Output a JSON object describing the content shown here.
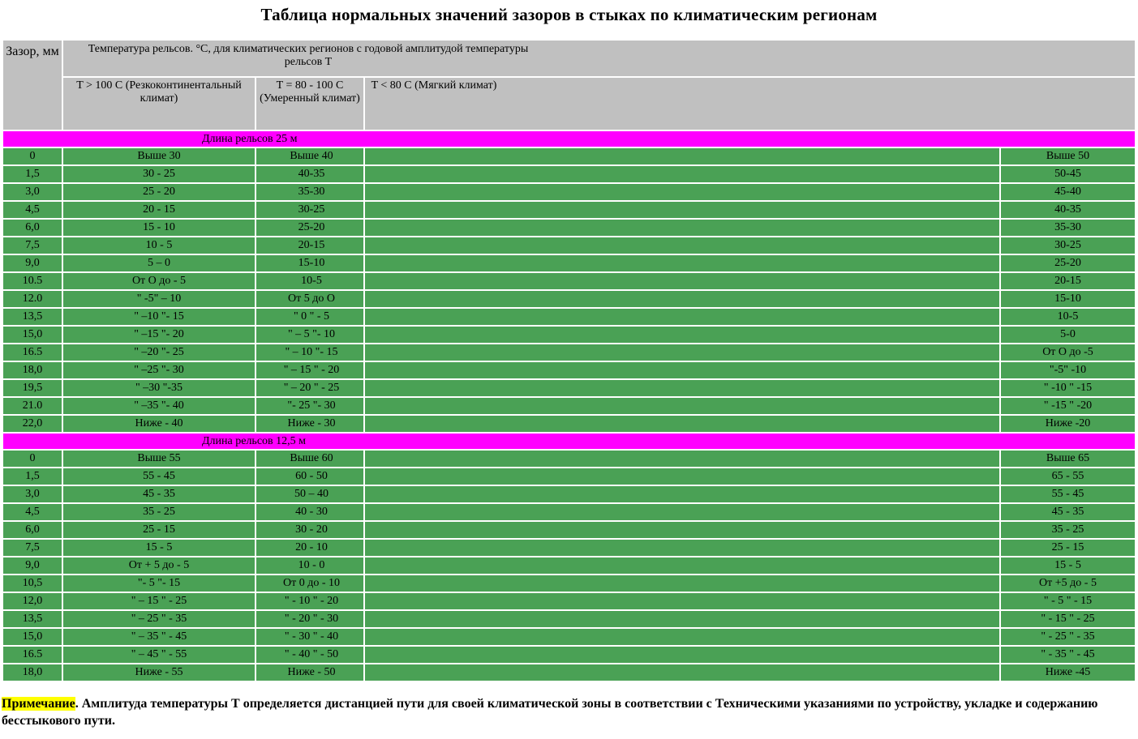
{
  "title": "Таблица нормальных значений зазоров в стыках по климатическим регионам",
  "header": {
    "gap_label": "Зазор, мм",
    "temp_label": "Температура рельсов. °С, для климатических регионов с годовой амплитудой температуры рельсов Т",
    "col1": "T > 100 C (Резкоконтинентальный климат)",
    "col2": "T = 80 - 100 C (Умеренный климат)",
    "col3": "T < 80 C (Мягкий климат)"
  },
  "sections": [
    {
      "title": "Длина рельсов 25 м",
      "rows": [
        [
          "0",
          "Выше 30",
          "Выше 40",
          "Выше 50"
        ],
        [
          "1,5",
          "30 - 25",
          "40-35",
          "50-45"
        ],
        [
          "3,0",
          "25 - 20",
          "35-30",
          "45-40"
        ],
        [
          "4,5",
          "20 - 15",
          "30-25",
          "40-35"
        ],
        [
          "6,0",
          "15 - 10",
          "25-20",
          "35-30"
        ],
        [
          "7,5",
          "10 - 5",
          "20-15",
          "30-25"
        ],
        [
          "9,0",
          "5 – 0",
          "15-10",
          "25-20"
        ],
        [
          "10.5",
          "От О до - 5",
          "10-5",
          "20-15"
        ],
        [
          "12.0",
          "\" -5\" – 10",
          "От 5 до О",
          "15-10"
        ],
        [
          "13,5",
          "\" –10 \"- 15",
          "\" 0 \" - 5",
          "10-5"
        ],
        [
          "15,0",
          "\" –15 \"- 20",
          "\" – 5 \"- 10",
          "5-0"
        ],
        [
          "16.5",
          "\" –20 \"- 25",
          "\" – 10 \"- 15",
          "От О до -5"
        ],
        [
          "18,0",
          "\" –25 \"- 30",
          "\" – 15 \" - 20",
          "\"-5\" -10"
        ],
        [
          "19,5",
          "\" –30 \"-35",
          "\" – 20 \" - 25",
          "\" -10 \" -15"
        ],
        [
          "21.0",
          "\" –35 \"- 40",
          "\"- 25 \"- 30",
          "\" -15 \" -20"
        ],
        [
          "22,0",
          "Ниже - 40",
          "Ниже - 30",
          "Ниже -20"
        ]
      ]
    },
    {
      "title": "Длина рельсов 12,5 м",
      "rows": [
        [
          "0",
          "Выше 55",
          "Выше 60",
          "Выше 65"
        ],
        [
          "1,5",
          "55 - 45",
          "60 - 50",
          "65 - 55"
        ],
        [
          "3,0",
          "45 - 35",
          "50 – 40",
          "55 - 45"
        ],
        [
          "4,5",
          "35 - 25",
          "40 - 30",
          "45 - 35"
        ],
        [
          "6,0",
          "25 - 15",
          "30 - 20",
          "35 - 25"
        ],
        [
          "7,5",
          "15 - 5",
          "20 - 10",
          "25 - 15"
        ],
        [
          "9,0",
          "От + 5 до - 5",
          "10 - 0",
          "15 - 5"
        ],
        [
          "10,5",
          "\"- 5 \"- 15",
          "От 0 до - 10",
          "От +5 до - 5"
        ],
        [
          "12,0",
          "\" – 15 \" - 25",
          "\" - 10 \" - 20",
          "\" - 5 \" - 15"
        ],
        [
          "13,5",
          "\" – 25 \" - 35",
          "\" - 20 \" - 30",
          "\" - 15 \" - 25"
        ],
        [
          "15,0",
          "\" – 35 \" - 45",
          "\" - 30 \" - 40",
          "\" - 25 \" - 35"
        ],
        [
          "16.5",
          "\" – 45 \" - 55",
          "\" - 40 \" - 50",
          "\" - 35 \" - 45"
        ],
        [
          "18,0",
          "Ниже - 55",
          "Ниже - 50",
          "Ниже -45"
        ]
      ]
    }
  ],
  "note": {
    "label": "Примечание",
    "text": ". Амплитуда температуры Т определяется дистанцией пути для своей климатической зоны в соответствии с Техническими указаниями по устройству, укладке и содержанию бесстыкового пути."
  },
  "colors": {
    "header_bg": "#c0c0c0",
    "section_bg": "#ff00ff",
    "row_bg": "#4aa155",
    "note_highlight": "#ffff00"
  }
}
